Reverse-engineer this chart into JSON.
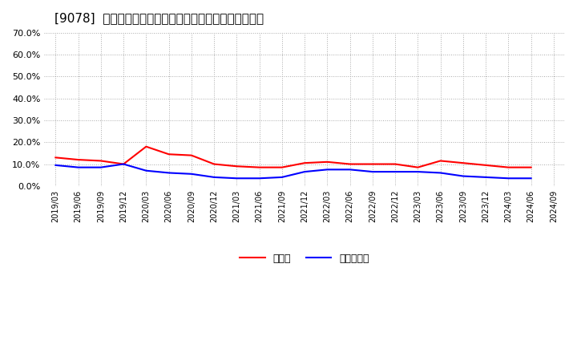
{
  "title": "[9078]  現預金、有利子負債の総資産に対する比率の推移",
  "x_labels": [
    "2019/03",
    "2019/06",
    "2019/09",
    "2019/12",
    "2020/03",
    "2020/06",
    "2020/09",
    "2020/12",
    "2021/03",
    "2021/06",
    "2021/09",
    "2021/12",
    "2022/03",
    "2022/06",
    "2022/09",
    "2022/12",
    "2023/03",
    "2023/06",
    "2023/09",
    "2023/12",
    "2024/03",
    "2024/06",
    "2024/09"
  ],
  "cash": [
    0.13,
    0.12,
    0.115,
    0.1,
    0.18,
    0.145,
    0.14,
    0.1,
    0.09,
    0.085,
    0.085,
    0.105,
    0.11,
    0.1,
    0.1,
    0.1,
    0.085,
    0.115,
    0.105,
    0.095,
    0.085,
    0.085,
    null
  ],
  "debt": [
    0.095,
    0.085,
    0.085,
    0.1,
    0.07,
    0.06,
    0.055,
    0.04,
    0.035,
    0.035,
    0.04,
    0.065,
    0.075,
    0.075,
    0.065,
    0.065,
    0.065,
    0.06,
    0.045,
    0.04,
    0.035,
    0.035,
    null
  ],
  "cash_color": "#ff0000",
  "debt_color": "#0000ff",
  "bg_color": "#ffffff",
  "grid_color": "#aaaaaa",
  "ylim": [
    0.0,
    0.7
  ],
  "yticks": [
    0.0,
    0.1,
    0.2,
    0.3,
    0.4,
    0.5,
    0.6,
    0.7
  ],
  "legend_cash": "現預金",
  "legend_debt": "有利子負債"
}
